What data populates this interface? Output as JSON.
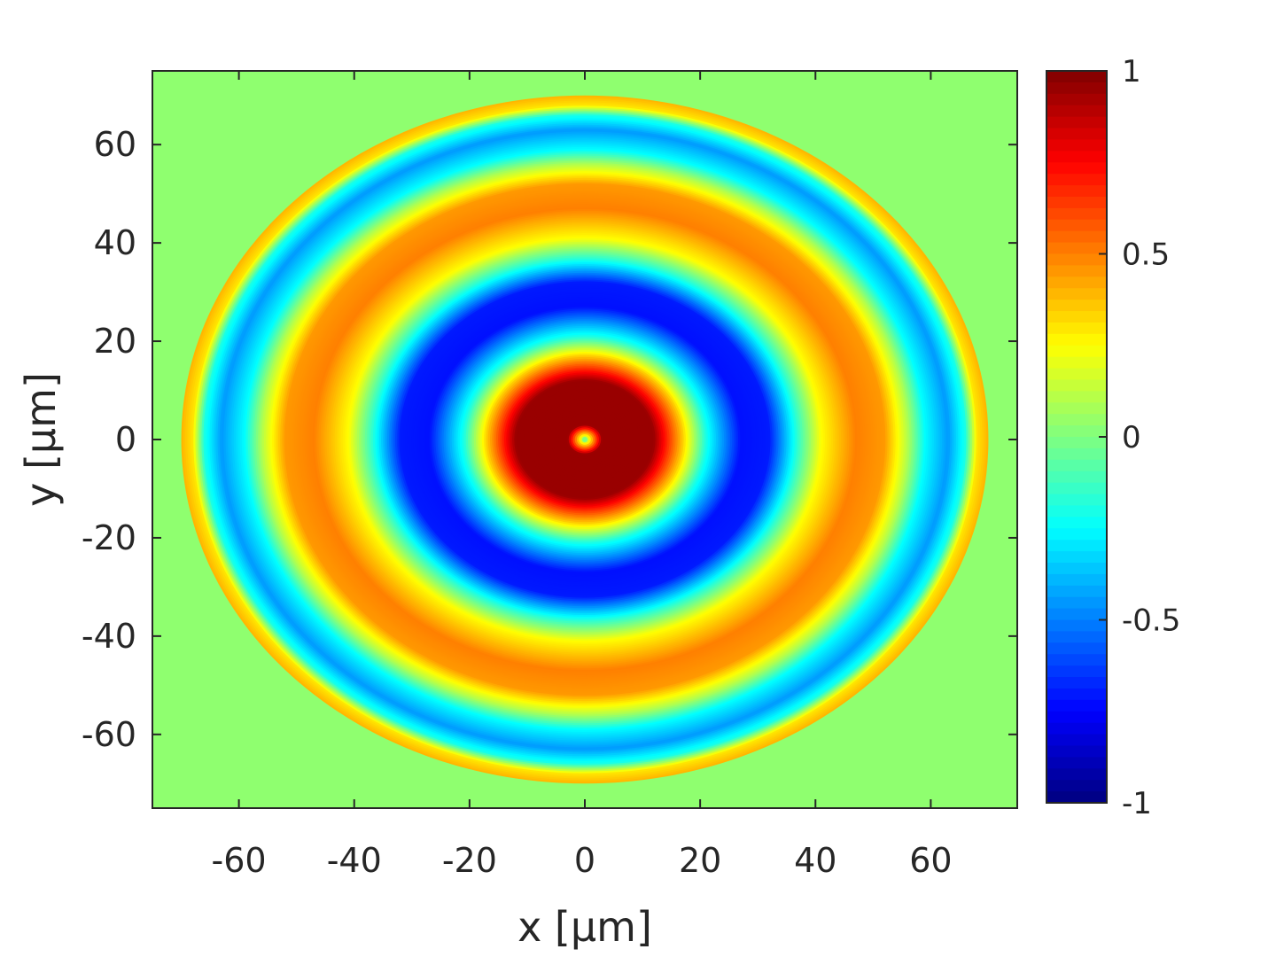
{
  "chart_data": {
    "type": "heatmap",
    "title": "",
    "xlabel": "x [μm]",
    "ylabel": "y [μm]",
    "xlim": [
      -75,
      75
    ],
    "ylim": [
      -75,
      75
    ],
    "x_ticks": [
      -60,
      -40,
      -20,
      0,
      20,
      40,
      60
    ],
    "y_ticks": [
      -60,
      -40,
      -20,
      0,
      20,
      40,
      60
    ],
    "x_tick_labels": [
      "-60",
      "-40",
      "-20",
      "0",
      "20",
      "40",
      "60"
    ],
    "y_tick_labels": [
      "-60",
      "-40",
      "-20",
      "0",
      "20",
      "40",
      "60"
    ],
    "colormap": "jet",
    "colorbar": {
      "clim": [
        -1,
        1
      ],
      "ticks": [
        1,
        0.5,
        0,
        -0.5,
        -1
      ],
      "tick_labels": [
        "1",
        "0.5",
        "0",
        "-0.5",
        "-1"
      ]
    },
    "field": {
      "description_of_pattern": "concentric elliptical rings",
      "outer_radius_x": 70,
      "outer_radius_y": 70,
      "background_value": 0,
      "radial_profile": [
        {
          "r": 0,
          "value": 0
        },
        {
          "r": 3,
          "value": 0.95
        },
        {
          "r": 12,
          "value": 0.95
        },
        {
          "r": 17,
          "value": 0.35
        },
        {
          "r": 21,
          "value": -0.2
        },
        {
          "r": 27,
          "value": -0.72
        },
        {
          "r": 32,
          "value": -0.7
        },
        {
          "r": 37,
          "value": -0.15
        },
        {
          "r": 41,
          "value": 0.25
        },
        {
          "r": 47,
          "value": 0.5
        },
        {
          "r": 52,
          "value": 0.45
        },
        {
          "r": 56,
          "value": 0.1
        },
        {
          "r": 59,
          "value": -0.25
        },
        {
          "r": 63,
          "value": -0.45
        },
        {
          "r": 66,
          "value": -0.2
        },
        {
          "r": 68,
          "value": 0.3
        },
        {
          "r": 70,
          "value": 0.4
        },
        {
          "r": 70.01,
          "value": 0
        }
      ]
    }
  }
}
